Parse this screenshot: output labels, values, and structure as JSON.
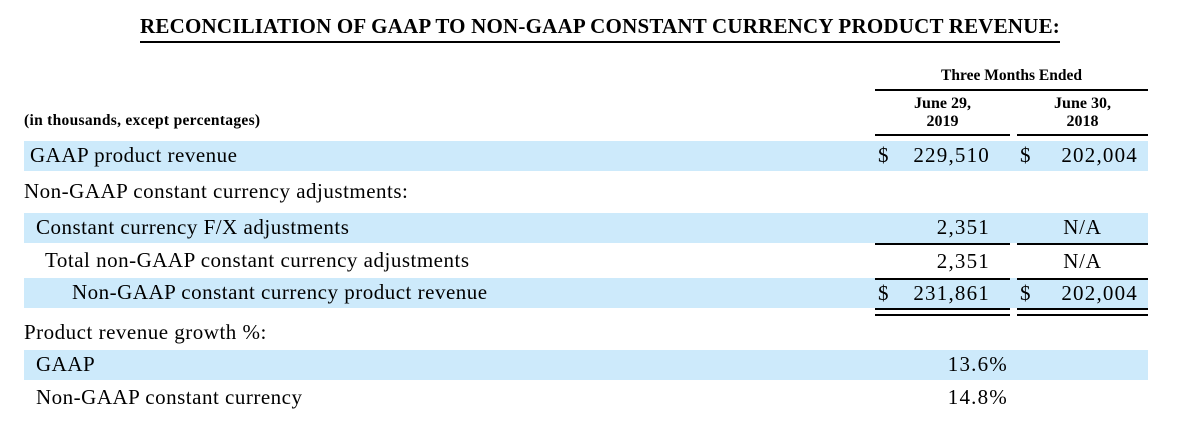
{
  "title": "RECONCILIATION OF GAAP TO NON-GAAP CONSTANT CURRENCY PRODUCT REVENUE:",
  "table": {
    "row_header": "(in thousands, except percentages)",
    "period_header": "Three Months Ended",
    "col_headers": [
      {
        "line1": "June 29,",
        "line2": "2019"
      },
      {
        "line1": "June 30,",
        "line2": "2018"
      }
    ],
    "rows": [
      {
        "label": "GAAP product revenue",
        "c1_prefix": "$",
        "c1_value": "229,510",
        "c2_prefix": "$",
        "c2_value": "202,004"
      },
      {
        "label": "Non-GAAP constant currency adjustments:"
      },
      {
        "label": "Constant currency F/X adjustments",
        "c1_value": "2,351",
        "c2_value": "N/A"
      },
      {
        "label": "Total non-GAAP constant currency adjustments",
        "c1_value": "2,351",
        "c2_value": "N/A"
      },
      {
        "label": "Non-GAAP constant currency product revenue",
        "c1_prefix": "$",
        "c1_value": "231,861",
        "c2_prefix": "$",
        "c2_value": "202,004"
      },
      {
        "label": "Product revenue growth %:"
      },
      {
        "label": "GAAP",
        "c1_value": "13.6%"
      },
      {
        "label": "Non-GAAP constant currency",
        "c1_value": "14.8%"
      }
    ]
  },
  "colors": {
    "row_highlight": "#CDEAFB",
    "text": "#000000",
    "rule": "#000000",
    "background": "#FFFFFF"
  }
}
